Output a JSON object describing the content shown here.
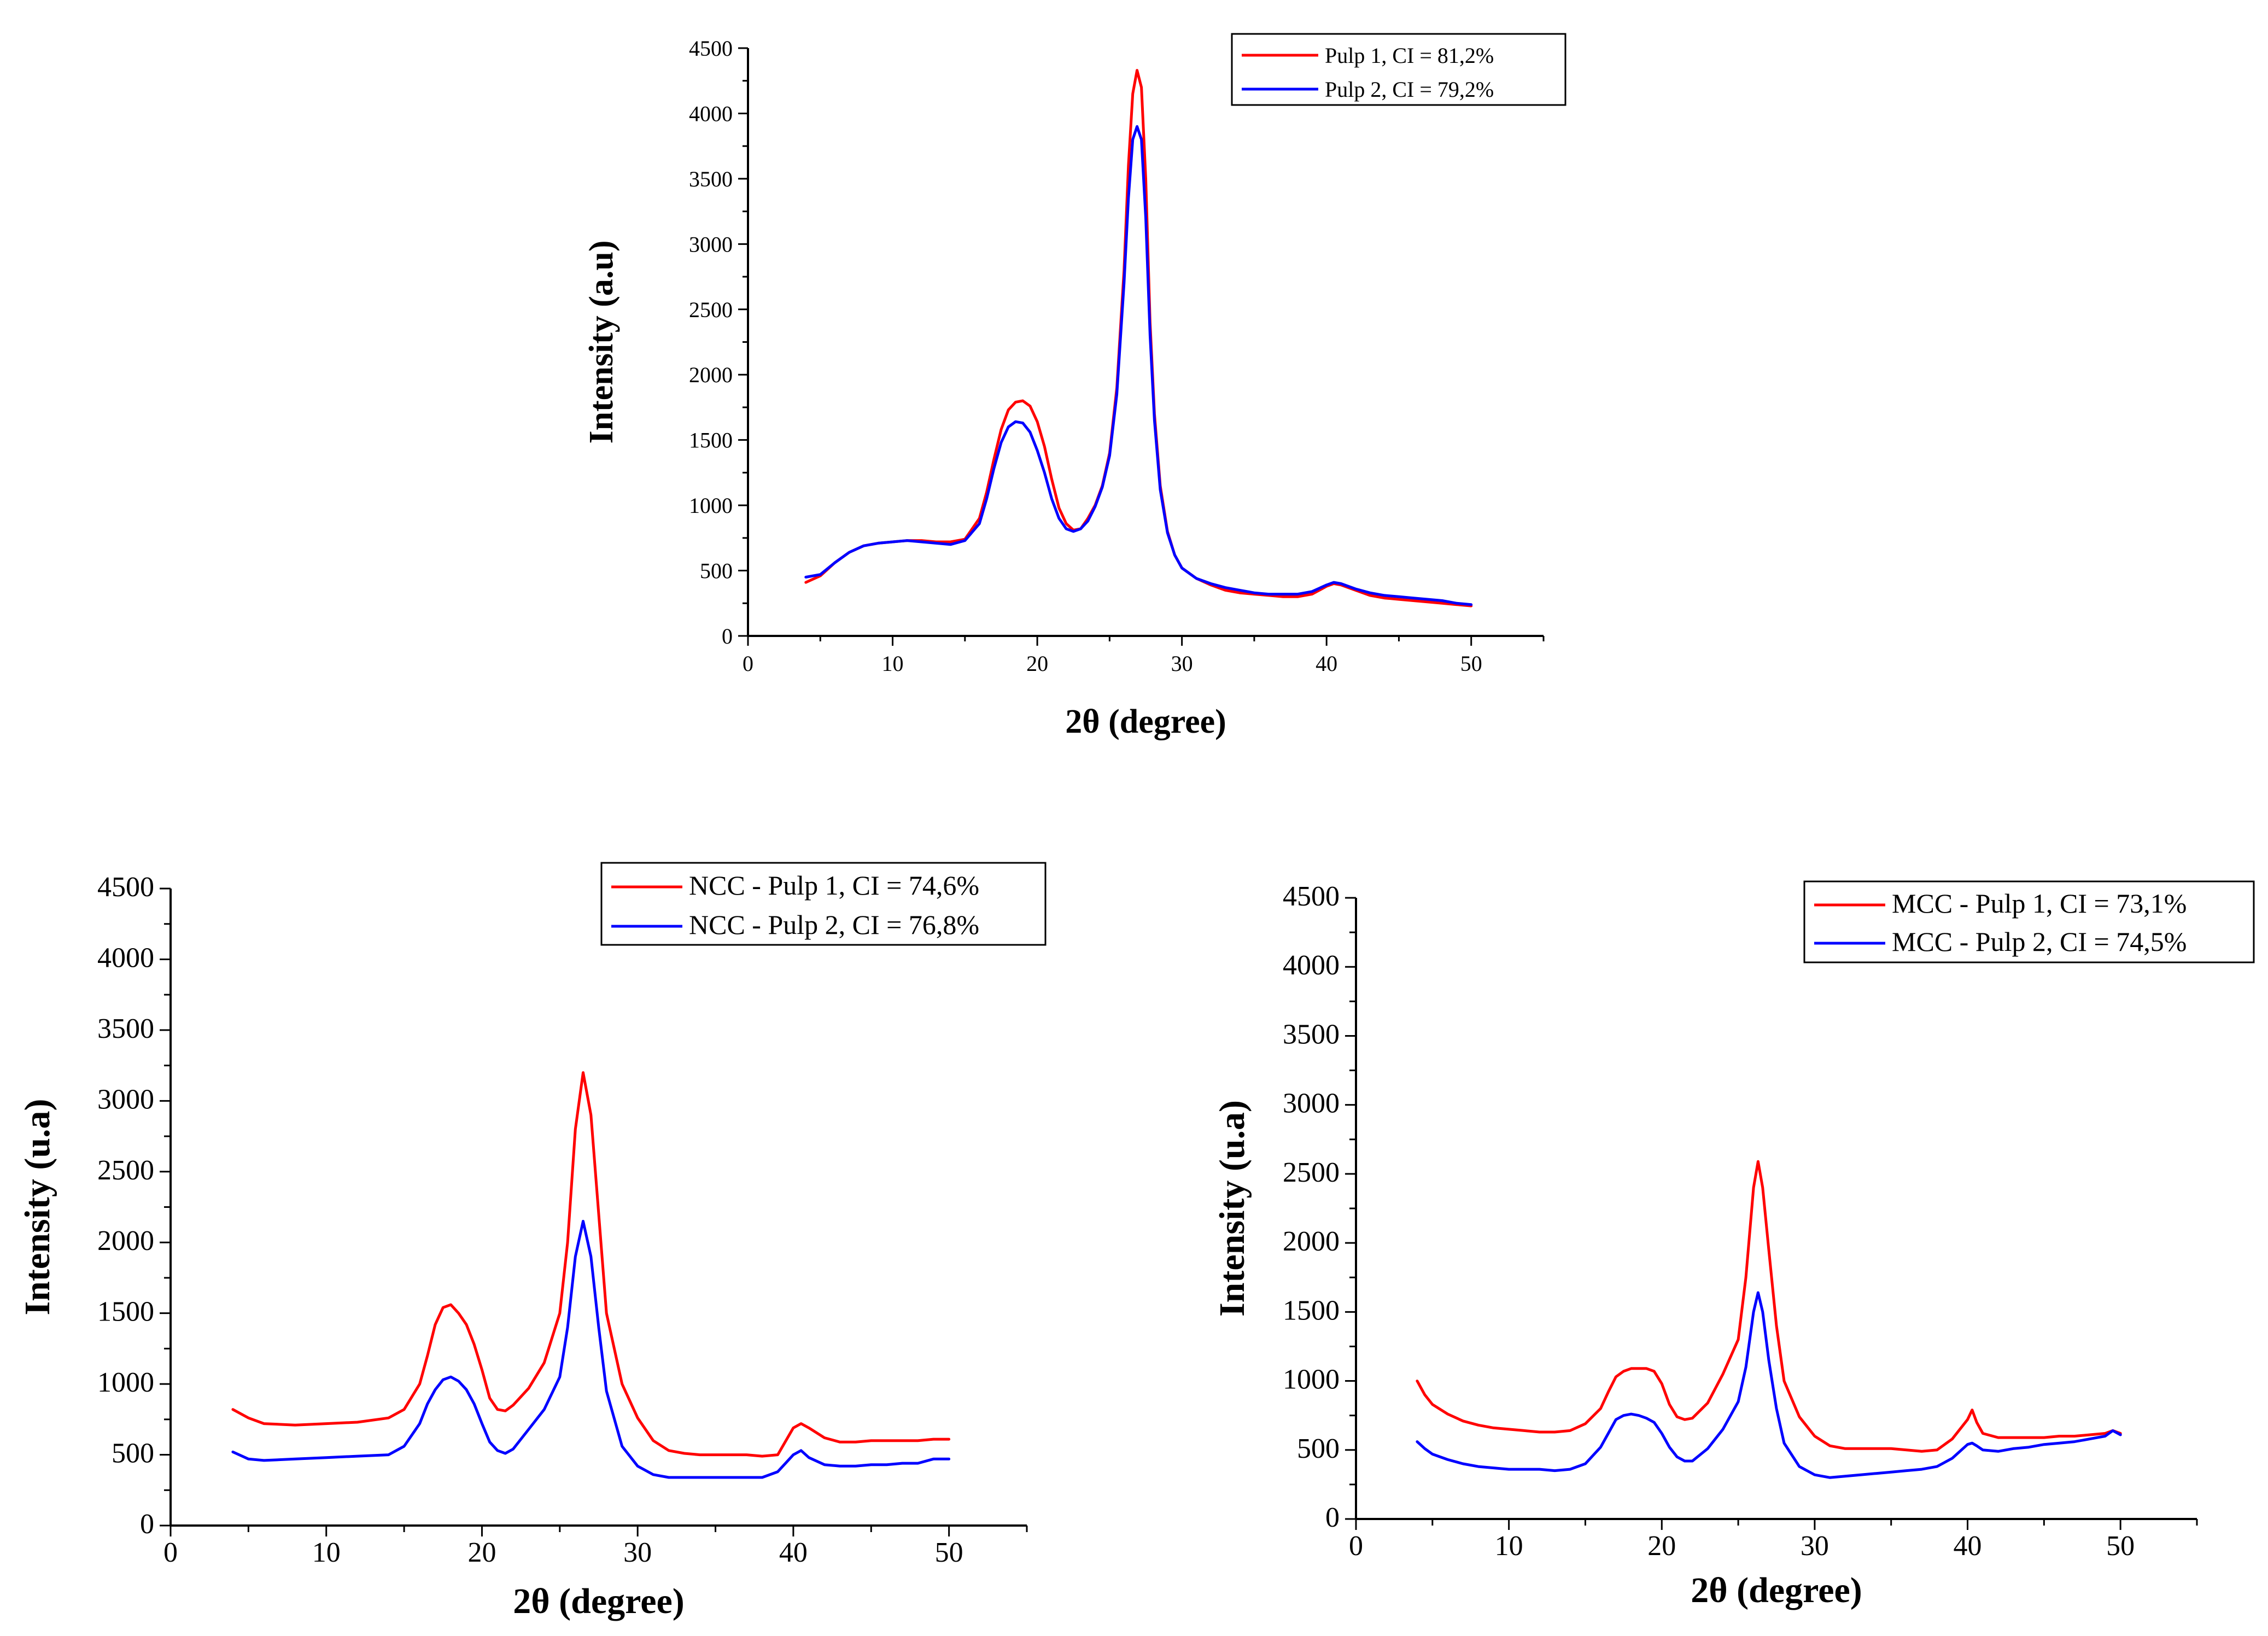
{
  "chart_data": [
    {
      "id": "top",
      "type": "line",
      "xlabel": "2θ (degree)",
      "ylabel": "Intensity (a.u)",
      "xlim": [
        0,
        55
      ],
      "ylim": [
        0,
        4500
      ],
      "xticks": [
        0,
        10,
        20,
        30,
        40,
        50
      ],
      "yticks": [
        0,
        500,
        1000,
        1500,
        2000,
        2500,
        3000,
        3500,
        4000,
        4500
      ],
      "legend_position": "top-right",
      "series": [
        {
          "name": "Pulp 1, CI = 81,2%",
          "color": "#ff0000",
          "x": [
            4,
            5,
            6,
            7,
            8,
            9,
            10,
            11,
            12,
            13,
            14,
            15,
            16,
            16.5,
            17,
            17.5,
            18,
            18.5,
            19,
            19.5,
            20,
            20.5,
            21,
            21.5,
            22,
            22.5,
            23,
            23.5,
            24,
            24.5,
            25,
            25.5,
            26,
            26.3,
            26.6,
            26.9,
            27.2,
            27.5,
            27.8,
            28.1,
            28.5,
            29,
            29.5,
            30,
            31,
            32,
            33,
            34,
            35,
            36,
            37,
            38,
            39,
            40,
            40.5,
            41,
            42,
            43,
            44,
            45,
            46,
            47,
            48,
            49,
            50
          ],
          "y": [
            410,
            460,
            560,
            640,
            690,
            710,
            720,
            730,
            730,
            720,
            720,
            740,
            900,
            1100,
            1350,
            1580,
            1730,
            1790,
            1800,
            1760,
            1640,
            1450,
            1200,
            980,
            860,
            810,
            820,
            900,
            1000,
            1150,
            1400,
            1900,
            2800,
            3600,
            4150,
            4330,
            4200,
            3500,
            2400,
            1700,
            1150,
            800,
            620,
            520,
            440,
            390,
            350,
            330,
            320,
            310,
            300,
            300,
            320,
            380,
            400,
            390,
            350,
            310,
            290,
            280,
            270,
            260,
            250,
            240,
            230
          ]
        },
        {
          "name": "Pulp 2, CI = 79,2%",
          "color": "#0000ff",
          "x": [
            4,
            5,
            6,
            7,
            8,
            9,
            10,
            11,
            12,
            13,
            14,
            15,
            16,
            16.5,
            17,
            17.5,
            18,
            18.5,
            19,
            19.5,
            20,
            20.5,
            21,
            21.5,
            22,
            22.5,
            23,
            23.5,
            24,
            24.5,
            25,
            25.5,
            26,
            26.3,
            26.6,
            26.9,
            27.2,
            27.5,
            27.8,
            28.1,
            28.5,
            29,
            29.5,
            30,
            31,
            32,
            33,
            34,
            35,
            36,
            37,
            38,
            39,
            40,
            40.5,
            41,
            42,
            43,
            44,
            45,
            46,
            47,
            48,
            49,
            50
          ],
          "y": [
            450,
            470,
            560,
            640,
            690,
            710,
            720,
            730,
            720,
            710,
            700,
            730,
            860,
            1050,
            1280,
            1480,
            1600,
            1640,
            1630,
            1560,
            1420,
            1250,
            1050,
            900,
            820,
            800,
            820,
            880,
            990,
            1140,
            1380,
            1850,
            2700,
            3350,
            3800,
            3900,
            3800,
            3200,
            2300,
            1650,
            1120,
            790,
            620,
            520,
            440,
            400,
            370,
            350,
            330,
            320,
            320,
            320,
            340,
            390,
            410,
            400,
            360,
            330,
            310,
            300,
            290,
            280,
            270,
            250,
            240
          ]
        }
      ]
    },
    {
      "id": "bottom-left",
      "type": "line",
      "xlabel": "2θ (degree)",
      "ylabel": "Intensity (u.a)",
      "xlim": [
        0,
        55
      ],
      "ylim": [
        0,
        4500
      ],
      "xticks": [
        0,
        10,
        20,
        30,
        40,
        50
      ],
      "yticks": [
        0,
        500,
        1000,
        1500,
        2000,
        2500,
        3000,
        3500,
        4000,
        4500
      ],
      "legend_position": "top-right",
      "series": [
        {
          "name": "NCC - Pulp 1, CI = 74,6%",
          "color": "#ff0000",
          "x": [
            4,
            5,
            6,
            8,
            10,
            12,
            14,
            15,
            16,
            16.5,
            17,
            17.5,
            18,
            18.5,
            19,
            19.5,
            20,
            20.5,
            21,
            21.5,
            22,
            23,
            24,
            25,
            25.5,
            26,
            26.5,
            27,
            27.5,
            28,
            29,
            30,
            31,
            32,
            33,
            34,
            35,
            36,
            37,
            38,
            39,
            40,
            40.5,
            41,
            42,
            43,
            44,
            45,
            46,
            47,
            48,
            49,
            50
          ],
          "y": [
            820,
            760,
            720,
            710,
            720,
            730,
            760,
            820,
            1000,
            1200,
            1420,
            1540,
            1560,
            1500,
            1420,
            1280,
            1100,
            900,
            820,
            810,
            850,
            970,
            1150,
            1500,
            2000,
            2800,
            3200,
            2900,
            2200,
            1500,
            1000,
            760,
            600,
            530,
            510,
            500,
            500,
            500,
            500,
            490,
            500,
            690,
            720,
            690,
            620,
            590,
            590,
            600,
            600,
            600,
            600,
            610,
            610
          ]
        },
        {
          "name": "NCC - Pulp 2, CI = 76,8%",
          "color": "#0000ff",
          "x": [
            4,
            5,
            6,
            8,
            10,
            12,
            14,
            15,
            16,
            16.5,
            17,
            17.5,
            18,
            18.5,
            19,
            19.5,
            20,
            20.5,
            21,
            21.5,
            22,
            23,
            24,
            25,
            25.5,
            26,
            26.5,
            27,
            27.5,
            28,
            29,
            30,
            31,
            32,
            33,
            34,
            35,
            36,
            37,
            38,
            39,
            40,
            40.5,
            41,
            42,
            43,
            44,
            45,
            46,
            47,
            48,
            49,
            50
          ],
          "y": [
            520,
            470,
            460,
            470,
            480,
            490,
            500,
            560,
            720,
            860,
            960,
            1030,
            1050,
            1020,
            960,
            860,
            720,
            590,
            530,
            510,
            540,
            680,
            820,
            1050,
            1400,
            1900,
            2150,
            1900,
            1400,
            950,
            560,
            420,
            360,
            340,
            340,
            340,
            340,
            340,
            340,
            340,
            380,
            500,
            530,
            480,
            430,
            420,
            420,
            430,
            430,
            440,
            440,
            470,
            470
          ]
        }
      ]
    },
    {
      "id": "bottom-right",
      "type": "line",
      "xlabel": "2θ (degree)",
      "ylabel": "Intensity (u.a)",
      "xlim": [
        0,
        55
      ],
      "ylim": [
        0,
        4500
      ],
      "xticks": [
        0,
        10,
        20,
        30,
        40,
        50
      ],
      "yticks": [
        0,
        500,
        1000,
        1500,
        2000,
        2500,
        3000,
        3500,
        4000,
        4500
      ],
      "legend_position": "top-right",
      "series": [
        {
          "name": "MCC - Pulp 1, CI = 73,1%",
          "color": "#ff0000",
          "x": [
            4,
            4.5,
            5,
            6,
            7,
            8,
            9,
            10,
            11,
            12,
            13,
            14,
            15,
            16,
            16.5,
            17,
            17.5,
            18,
            18.5,
            19,
            19.5,
            20,
            20.5,
            21,
            21.5,
            22,
            23,
            24,
            25,
            25.5,
            26,
            26.3,
            26.6,
            27,
            27.5,
            28,
            29,
            30,
            31,
            32,
            33,
            34,
            35,
            36,
            37,
            38,
            39,
            40,
            40.3,
            40.6,
            41,
            42,
            43,
            44,
            45,
            46,
            47,
            48,
            49,
            49.5,
            50
          ],
          "y": [
            1000,
            900,
            830,
            760,
            710,
            680,
            660,
            650,
            640,
            630,
            630,
            640,
            690,
            800,
            920,
            1030,
            1070,
            1090,
            1090,
            1090,
            1070,
            980,
            830,
            740,
            720,
            730,
            840,
            1050,
            1300,
            1750,
            2400,
            2590,
            2400,
            1950,
            1400,
            1000,
            740,
            600,
            530,
            510,
            510,
            510,
            510,
            500,
            490,
            500,
            580,
            720,
            790,
            700,
            620,
            590,
            590,
            590,
            590,
            600,
            600,
            610,
            620,
            640,
            620
          ]
        },
        {
          "name": "MCC - Pulp 2, CI = 74,5%",
          "color": "#0000ff",
          "x": [
            4,
            4.5,
            5,
            6,
            7,
            8,
            9,
            10,
            11,
            12,
            13,
            14,
            15,
            16,
            16.5,
            17,
            17.5,
            18,
            18.5,
            19,
            19.5,
            20,
            20.5,
            21,
            21.5,
            22,
            23,
            24,
            25,
            25.5,
            26,
            26.3,
            26.6,
            27,
            27.5,
            28,
            29,
            30,
            31,
            32,
            33,
            34,
            35,
            36,
            37,
            38,
            39,
            40,
            40.3,
            40.6,
            41,
            42,
            43,
            44,
            45,
            46,
            47,
            48,
            49,
            49.5,
            50
          ],
          "y": [
            560,
            510,
            470,
            430,
            400,
            380,
            370,
            360,
            360,
            360,
            350,
            360,
            400,
            520,
            620,
            720,
            750,
            760,
            750,
            730,
            700,
            620,
            520,
            450,
            420,
            420,
            510,
            650,
            850,
            1100,
            1500,
            1640,
            1500,
            1150,
            800,
            550,
            380,
            320,
            300,
            310,
            320,
            330,
            340,
            350,
            360,
            380,
            440,
            540,
            550,
            530,
            500,
            490,
            510,
            520,
            540,
            550,
            560,
            580,
            600,
            640,
            610
          ]
        }
      ]
    }
  ]
}
